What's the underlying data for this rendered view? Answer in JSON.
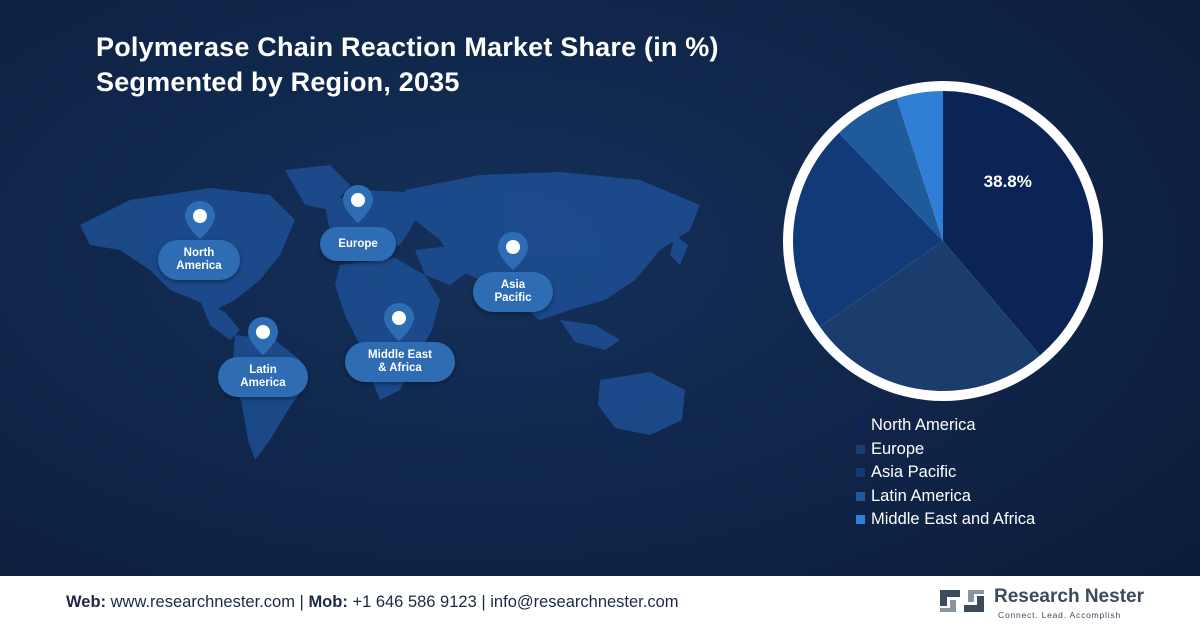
{
  "title": {
    "line1": "Polymerase Chain Reaction Market Share (in %)",
    "line2": "Segmented by Region, 2035"
  },
  "map_labels": {
    "north_america": [
      "North",
      "America"
    ],
    "europe": [
      "Europe"
    ],
    "asia_pacific": [
      "Asia",
      "Pacific"
    ],
    "latin_america": [
      "Latin",
      "America"
    ],
    "middle_east_africa": [
      "Middle East",
      "& Africa"
    ]
  },
  "chart_data": {
    "type": "pie",
    "title": "Polymerase Chain Reaction Market Share (in %) Segmented by Region, 2035",
    "categories": [
      "North America",
      "Europe",
      "Asia Pacific",
      "Latin America",
      "Middle East and Africa"
    ],
    "values": [
      38.8,
      26.5,
      22.5,
      7.2,
      5.0
    ],
    "colors": [
      "#0b2455",
      "#1a3d6e",
      "#123a78",
      "#1f5a9a",
      "#2f7fd6"
    ],
    "data_labels": [
      "38.8%",
      "",
      "",
      "",
      ""
    ],
    "legend_position": "bottom-right"
  },
  "footer": {
    "web_label": "Web:",
    "web": "www.researchnester.com",
    "mob_label": "Mob:",
    "mob": "+1 646 586 9123",
    "email": "info@researchnester.com",
    "sep": "|"
  },
  "logo": {
    "name": "Research Nester",
    "tagline": "Connect. Lead. Accomplish"
  }
}
